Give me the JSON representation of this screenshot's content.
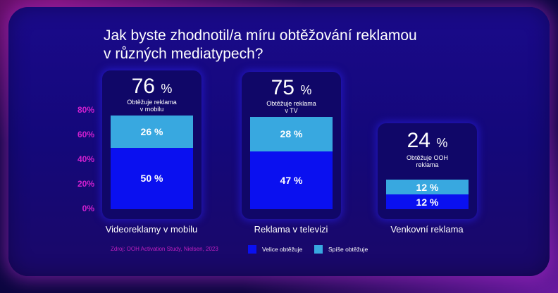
{
  "title_line1": "Jak byste zhodnotil/a míru obtěžování reklamou",
  "title_line2": "v různých mediatypech?",
  "source": "Zdroj: OOH Activation Study, Nielsen, 2023",
  "chart_data": {
    "type": "bar",
    "stacked": true,
    "categories": [
      "Videoreklamy v mobilu",
      "Reklama v televizi",
      "Venkovní reklama"
    ],
    "ylim": [
      0,
      80
    ],
    "yticks": [
      "0%",
      "20%",
      "40%",
      "60%",
      "80%"
    ],
    "series": [
      {
        "name": "Velice obtěžuje",
        "values": [
          50,
          47,
          12
        ],
        "labels": [
          "50 %",
          "47 %",
          "12 %"
        ],
        "color": "#0a10f0"
      },
      {
        "name": "Spíše obtěžuje",
        "values": [
          26,
          28,
          12
        ],
        "labels": [
          "26 %",
          "28 %",
          "12 %"
        ],
        "color": "#38a8e0"
      }
    ],
    "totals": [
      {
        "value": "76",
        "unit": "%",
        "note": [
          "Obtěžuje reklama",
          "v mobilu"
        ]
      },
      {
        "value": "75",
        "unit": "%",
        "note": [
          "Obtěžuje reklama",
          "v TV"
        ]
      },
      {
        "value": "24",
        "unit": "%",
        "note": [
          "Obtěžuje OOH",
          "reklama"
        ]
      }
    ]
  }
}
